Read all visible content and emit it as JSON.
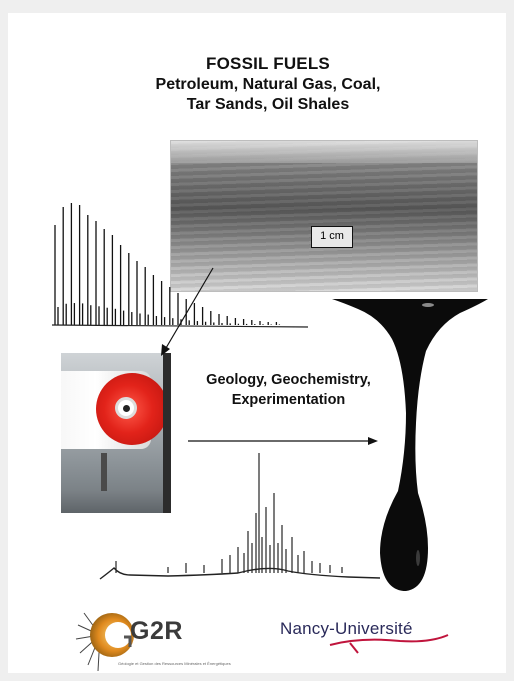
{
  "title": {
    "line1": "FOSSIL FUELS",
    "line2": "Petroleum, Natural Gas, Coal,",
    "line3": "Tar Sands, Oil Shales"
  },
  "scale_label": "1 cm",
  "subtitle": {
    "line1": "Geology, Geochemistry,",
    "line2": "Experimentation"
  },
  "logos": {
    "g2r": "G2R",
    "g2r_small": "Géologie et Gestion des Ressources Minérales et Énergétiques",
    "nancy": "Nancy-Université"
  },
  "colors": {
    "oil_drop": "#0b0b0b",
    "cylinder_red": "#e2231a",
    "nancy_underline": "#c0143c",
    "g2r_orange": "#e08a1e"
  }
}
